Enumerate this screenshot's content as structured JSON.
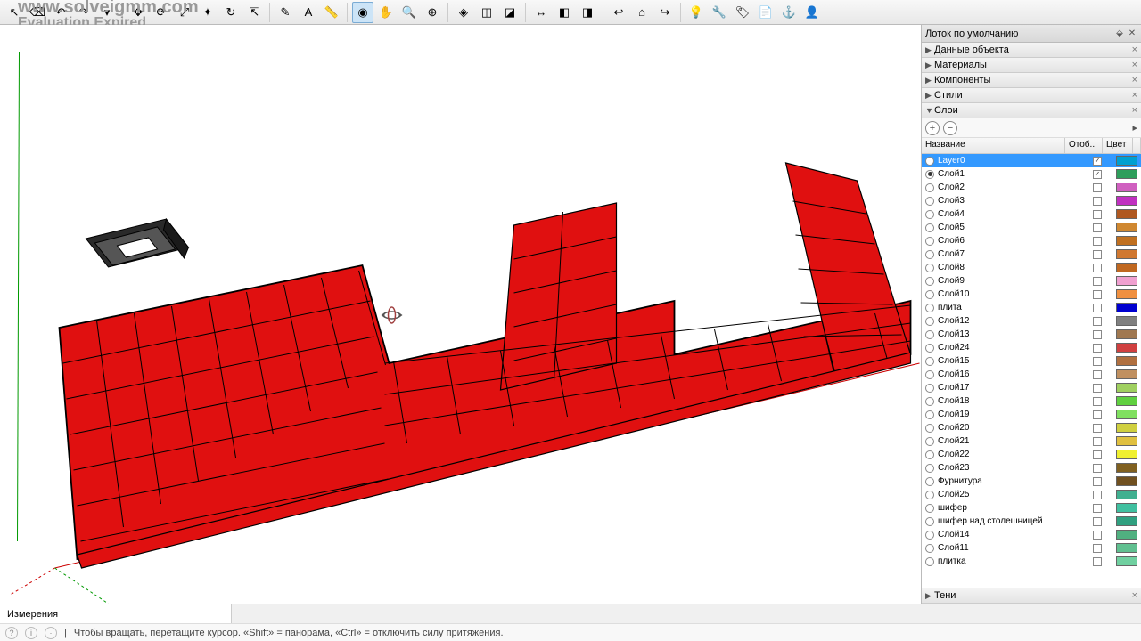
{
  "watermark": {
    "line1": "www.solveigmm.com",
    "line2": "Evaluation Expired"
  },
  "toolbar_icons": [
    "cursor",
    "eraser",
    "undo",
    "redo",
    "dropdown",
    "sep",
    "move",
    "rotate",
    "scale",
    "axis",
    "refresh",
    "export",
    "sep",
    "pencil",
    "text",
    "tape",
    "sep",
    "orbit-active",
    "hand",
    "zoom",
    "zoom-ext",
    "sep",
    "iso",
    "cube1",
    "cube2",
    "sep",
    "section",
    "prev",
    "next",
    "sep",
    "back",
    "home",
    "fwd",
    "sep",
    "bulb",
    "wrench",
    "tag",
    "note",
    "anchor",
    "person"
  ],
  "side_panel_title": "Лоток по умолчанию",
  "accordions": [
    {
      "label": "Данные объекта",
      "expanded": false
    },
    {
      "label": "Материалы",
      "expanded": false
    },
    {
      "label": "Компоненты",
      "expanded": false
    },
    {
      "label": "Стили",
      "expanded": false
    },
    {
      "label": "Слои",
      "expanded": true
    },
    {
      "label": "Тени",
      "expanded": false
    }
  ],
  "layers_columns": {
    "name": "Название",
    "viz": "Отоб...",
    "color": "Цвет"
  },
  "layers": [
    {
      "name": "Layer0",
      "active": false,
      "visible": true,
      "selected": true,
      "color": "#00a0d0"
    },
    {
      "name": "Слой1",
      "active": true,
      "visible": true,
      "selected": false,
      "color": "#2e9e5b"
    },
    {
      "name": "Слой2",
      "active": false,
      "visible": false,
      "selected": false,
      "color": "#d060c0"
    },
    {
      "name": "Слой3",
      "active": false,
      "visible": false,
      "selected": false,
      "color": "#c030c0"
    },
    {
      "name": "Слой4",
      "active": false,
      "visible": false,
      "selected": false,
      "color": "#b05820"
    },
    {
      "name": "Слой5",
      "active": false,
      "visible": false,
      "selected": false,
      "color": "#d08830"
    },
    {
      "name": "Слой6",
      "active": false,
      "visible": false,
      "selected": false,
      "color": "#c07020"
    },
    {
      "name": "Слой7",
      "active": false,
      "visible": false,
      "selected": false,
      "color": "#d07830"
    },
    {
      "name": "Слой8",
      "active": false,
      "visible": false,
      "selected": false,
      "color": "#c06820"
    },
    {
      "name": "Слой9",
      "active": false,
      "visible": false,
      "selected": false,
      "color": "#f0a0d0"
    },
    {
      "name": "Слой10",
      "active": false,
      "visible": false,
      "selected": false,
      "color": "#f09040"
    },
    {
      "name": "плита",
      "active": false,
      "visible": false,
      "selected": false,
      "color": "#0000d0"
    },
    {
      "name": "Слой12",
      "active": false,
      "visible": false,
      "selected": false,
      "color": "#808080"
    },
    {
      "name": "Слой13",
      "active": false,
      "visible": false,
      "selected": false,
      "color": "#a07850"
    },
    {
      "name": "Слой24",
      "active": false,
      "visible": false,
      "selected": false,
      "color": "#d04040"
    },
    {
      "name": "Слой15",
      "active": false,
      "visible": false,
      "selected": false,
      "color": "#b07040"
    },
    {
      "name": "Слой16",
      "active": false,
      "visible": false,
      "selected": false,
      "color": "#c09060"
    },
    {
      "name": "Слой17",
      "active": false,
      "visible": false,
      "selected": false,
      "color": "#a0d060"
    },
    {
      "name": "Слой18",
      "active": false,
      "visible": false,
      "selected": false,
      "color": "#60d040"
    },
    {
      "name": "Слой19",
      "active": false,
      "visible": false,
      "selected": false,
      "color": "#80e060"
    },
    {
      "name": "Слой20",
      "active": false,
      "visible": false,
      "selected": false,
      "color": "#d0d040"
    },
    {
      "name": "Слой21",
      "active": false,
      "visible": false,
      "selected": false,
      "color": "#e0c040"
    },
    {
      "name": "Слой22",
      "active": false,
      "visible": false,
      "selected": false,
      "color": "#f0f030"
    },
    {
      "name": "Слой23",
      "active": false,
      "visible": false,
      "selected": false,
      "color": "#806020"
    },
    {
      "name": "Фурнитура",
      "active": false,
      "visible": false,
      "selected": false,
      "color": "#705020"
    },
    {
      "name": "Слой25",
      "active": false,
      "visible": false,
      "selected": false,
      "color": "#40b090"
    },
    {
      "name": "шифер",
      "active": false,
      "visible": false,
      "selected": false,
      "color": "#40c0a0"
    },
    {
      "name": "шифер над столешницей",
      "active": false,
      "visible": false,
      "selected": false,
      "color": "#30a080"
    },
    {
      "name": "Слой14",
      "active": false,
      "visible": false,
      "selected": false,
      "color": "#50b080"
    },
    {
      "name": "Слой11",
      "active": false,
      "visible": false,
      "selected": false,
      "color": "#60c090"
    },
    {
      "name": "плитка",
      "active": false,
      "visible": false,
      "selected": false,
      "color": "#70d0a0"
    }
  ],
  "bottom_label": "Измерения",
  "status_hint": "Чтобы вращать, перетащите курсор. «Shift» = панорама, «Ctrl» = отключить силу притяжения.",
  "viewport": {
    "brick_fill": "#e01010",
    "brick_stroke": "#000000",
    "axis_green": "#009900",
    "axis_red": "#cc0000",
    "axis_blue": "#0000cc"
  }
}
